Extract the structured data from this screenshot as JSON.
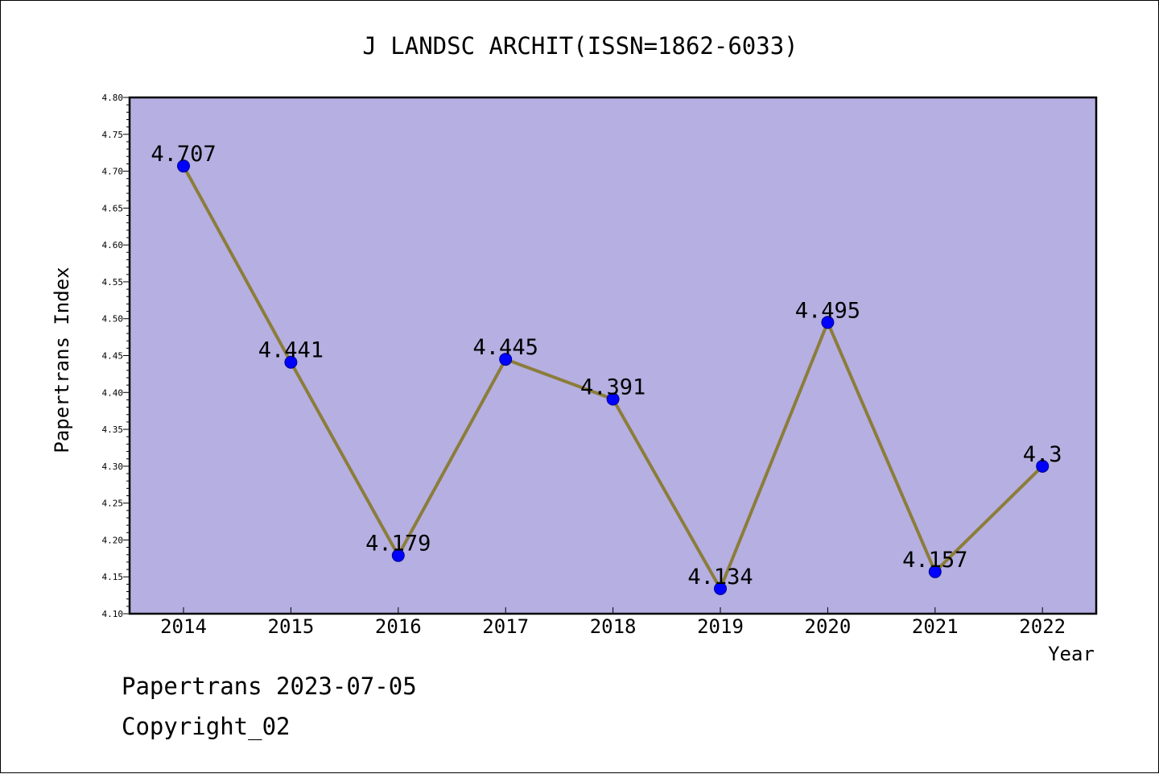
{
  "chart_data": {
    "type": "line",
    "title": "J LANDSC ARCHIT(ISSN=1862-6033)",
    "xlabel": "Year",
    "ylabel": "Papertrans Index",
    "categories": [
      "2014",
      "2015",
      "2016",
      "2017",
      "2018",
      "2019",
      "2020",
      "2021",
      "2022"
    ],
    "series": [
      {
        "values": [
          4.707,
          4.441,
          4.179,
          4.445,
          4.391,
          4.134,
          4.495,
          4.157,
          4.3
        ],
        "labels": [
          "4.707",
          "4.441",
          "4.179",
          "4.445",
          "4.391",
          "4.134",
          "4.495",
          "4.157",
          "4.3"
        ]
      }
    ],
    "ylim": [
      4.1,
      4.8
    ],
    "yticks": [
      "4.10",
      "4.15",
      "4.20",
      "4.25",
      "4.30",
      "4.35",
      "4.40",
      "4.45",
      "4.50",
      "4.55",
      "4.60",
      "4.65",
      "4.70",
      "4.75",
      "4.80"
    ],
    "grid": false,
    "legend": "none",
    "colors": {
      "plot_background": "#b5afe2",
      "line": "#8b7d3a",
      "marker": "#0000ff"
    }
  },
  "footer": {
    "line1": "Papertrans 2023-07-05",
    "line2": "Copyright_02"
  }
}
